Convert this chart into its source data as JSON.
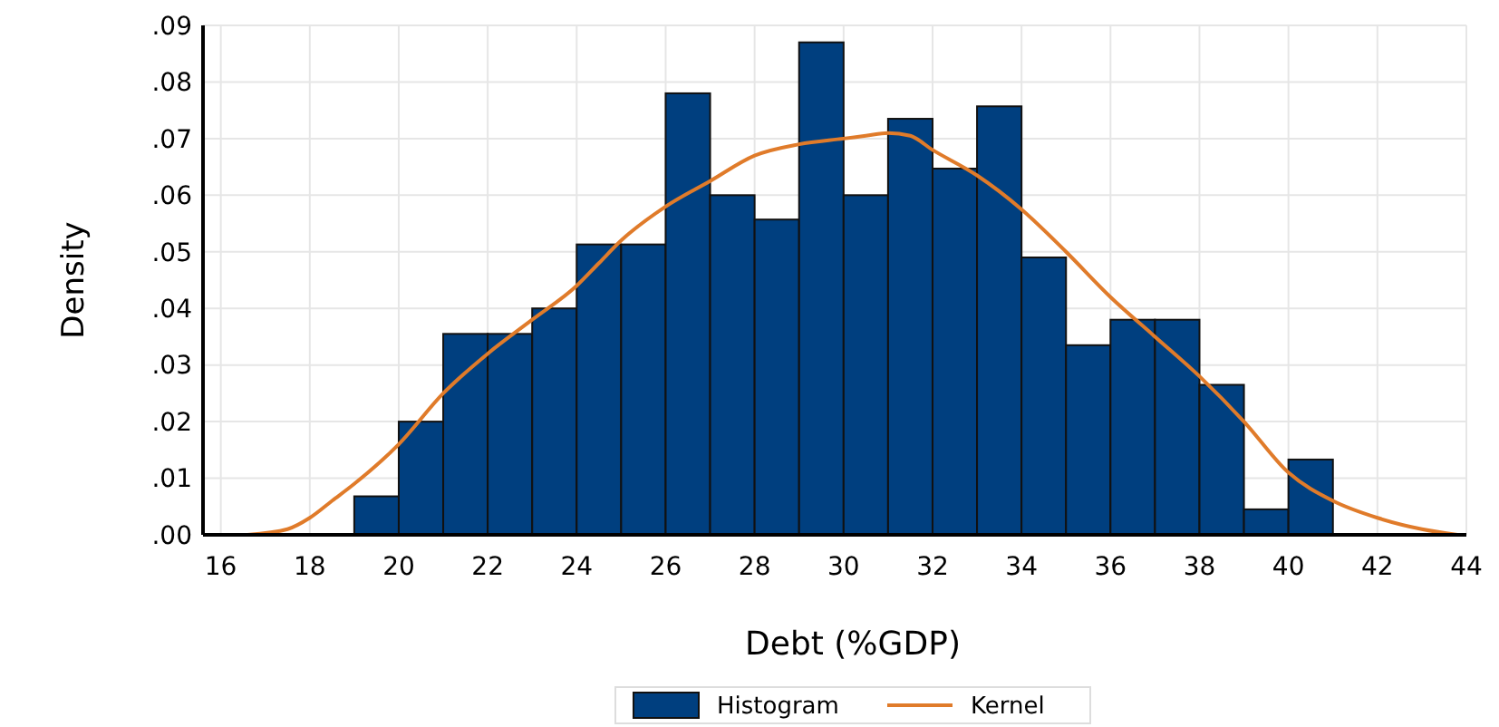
{
  "chart_data": {
    "type": "histogram",
    "xlabel": "Debt (%GDP)",
    "ylabel": "Density",
    "series": [
      {
        "name": "Histogram",
        "color": "#003f7f",
        "bins": [
          19,
          20,
          21,
          22,
          23,
          24,
          25,
          26,
          27,
          28,
          29,
          30,
          31,
          32,
          33,
          34,
          35,
          36,
          37,
          38,
          39,
          40,
          41
        ],
        "values": [
          0.0068,
          0.02,
          0.0355,
          0.0355,
          0.04,
          0.0513,
          0.0513,
          0.078,
          0.06,
          0.0557,
          0.087,
          0.06,
          0.0735,
          0.0647,
          0.0757,
          0.049,
          0.0335,
          0.038,
          0.038,
          0.0265,
          0.0045,
          0.0133
        ]
      },
      {
        "name": "Kernel",
        "type": "line",
        "color": "#e07b2a",
        "x": [
          16.6,
          17.5,
          18,
          18.5,
          19,
          20,
          21,
          22,
          23,
          24,
          24.5,
          25,
          26,
          27,
          28,
          29,
          30,
          30.5,
          31,
          31.5,
          32,
          33,
          34,
          35,
          36,
          37,
          38,
          39,
          40,
          41,
          42,
          43,
          43.8
        ],
        "values": [
          0,
          0.001,
          0.003,
          0.006,
          0.009,
          0.016,
          0.025,
          0.032,
          0.038,
          0.044,
          0.048,
          0.052,
          0.058,
          0.0625,
          0.067,
          0.069,
          0.07,
          0.0705,
          0.071,
          0.0705,
          0.068,
          0.0635,
          0.0575,
          0.05,
          0.042,
          0.035,
          0.028,
          0.02,
          0.011,
          0.006,
          0.003,
          0.001,
          0
        ]
      }
    ],
    "xlim": [
      15.6,
      44
    ],
    "xticks": [
      16,
      18,
      20,
      22,
      24,
      26,
      28,
      30,
      32,
      34,
      36,
      38,
      40,
      42,
      44
    ],
    "ylim": [
      0,
      0.09
    ],
    "yticks": [
      {
        "value": 0,
        "label": ".00"
      },
      {
        "value": 0.01,
        "label": ".01"
      },
      {
        "value": 0.02,
        "label": ".02"
      },
      {
        "value": 0.03,
        "label": ".03"
      },
      {
        "value": 0.04,
        "label": ".04"
      },
      {
        "value": 0.05,
        "label": ".05"
      },
      {
        "value": 0.06,
        "label": ".06"
      },
      {
        "value": 0.07,
        "label": ".07"
      },
      {
        "value": 0.08,
        "label": ".08"
      },
      {
        "value": 0.09,
        "label": ".09"
      }
    ],
    "grid": true,
    "legend": "bottom",
    "line_style": "solid"
  }
}
